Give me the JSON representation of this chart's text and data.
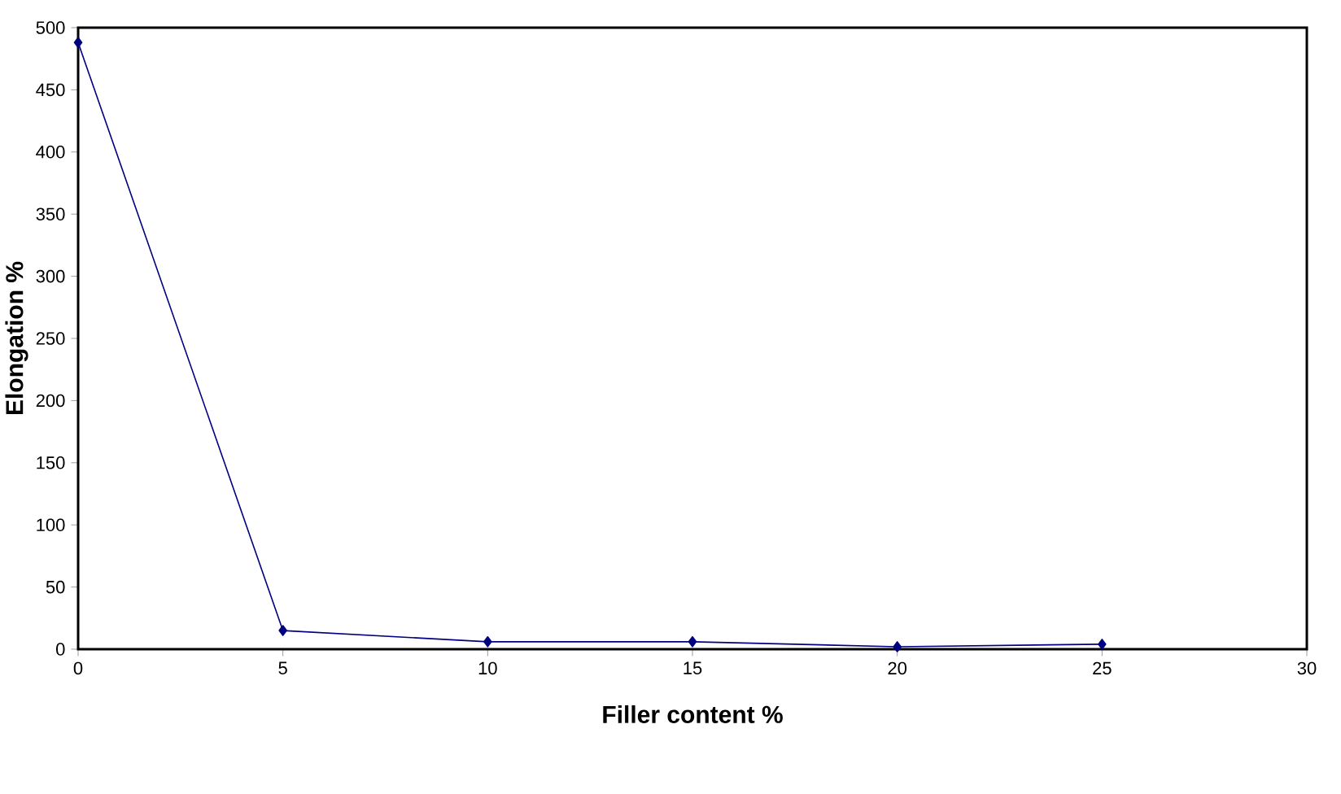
{
  "chart_data": {
    "type": "line",
    "xlabel": "Filler content %",
    "ylabel": "Elongation  %",
    "x": [
      0,
      5,
      10,
      15,
      20,
      25
    ],
    "series": [
      {
        "color": "#000080",
        "values": [
          488,
          15,
          6,
          6,
          2,
          4
        ]
      }
    ],
    "xlim": [
      0,
      30
    ],
    "xticks": [
      0,
      5,
      10,
      15,
      20,
      25,
      30
    ],
    "ylim": [
      0,
      500
    ],
    "yticks": [
      0,
      50,
      100,
      150,
      200,
      250,
      300,
      350,
      400,
      450,
      500
    ],
    "grid": false,
    "marker": "diamond",
    "line_style": "solid"
  }
}
